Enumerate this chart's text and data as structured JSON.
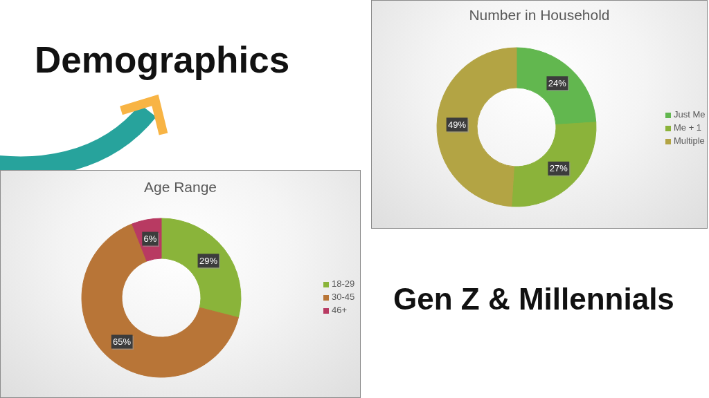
{
  "chart_data": [
    {
      "type": "other",
      "title": "Demographics"
    },
    {
      "type": "donut",
      "title": "Number in Household",
      "categories": [
        "Just Me",
        "Me + 1",
        "Multiple"
      ],
      "values": [
        24,
        27,
        49
      ],
      "colors": [
        "#62b74f",
        "#8bb33a",
        "#b3a444"
      ],
      "value_labels": [
        "24%",
        "27%",
        "49%"
      ],
      "legend": "right"
    },
    {
      "type": "donut",
      "title": "Age Range",
      "categories": [
        "18-29",
        "30-45",
        "46+"
      ],
      "values": [
        29,
        65,
        6
      ],
      "colors": [
        "#8ab43a",
        "#b87537",
        "#b83a62"
      ],
      "value_labels": [
        "29%",
        "65%",
        "6%"
      ],
      "legend": "right"
    },
    {
      "type": "other",
      "title": "Gen Z & Millennials"
    }
  ]
}
